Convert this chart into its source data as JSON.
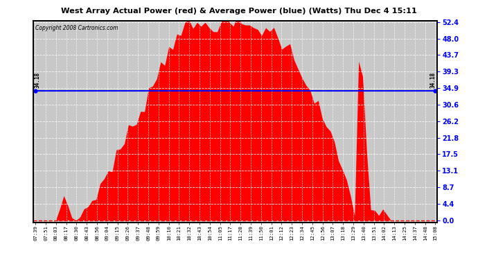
{
  "title": "West Array Actual Power (red) & Average Power (blue) (Watts) Thu Dec 4 15:11",
  "copyright": "Copyright 2008 Cartronics.com",
  "average_value": 34.18,
  "y_max": 52.4,
  "y_ticks": [
    0.0,
    4.4,
    8.7,
    13.1,
    17.5,
    21.8,
    26.2,
    30.6,
    34.9,
    39.3,
    43.7,
    48.0,
    52.4
  ],
  "bg_color": "#ffffff",
  "plot_bg_color": "#c8c8c8",
  "bar_color": "#ff0000",
  "avg_line_color": "#0000ff",
  "grid_color": "#ffffff",
  "x_labels": [
    "07:39",
    "07:51",
    "08:03",
    "08:17",
    "08:30",
    "08:43",
    "08:56",
    "09:04",
    "09:15",
    "09:26",
    "09:37",
    "09:48",
    "09:59",
    "10:10",
    "10:21",
    "10:32",
    "10:43",
    "10:54",
    "11:05",
    "11:17",
    "11:28",
    "11:39",
    "11:50",
    "12:01",
    "12:12",
    "12:23",
    "12:34",
    "12:45",
    "12:56",
    "13:07",
    "13:18",
    "13:29",
    "13:40",
    "13:51",
    "14:02",
    "14:13",
    "14:25",
    "14:37",
    "14:48",
    "15:08"
  ],
  "figsize": [
    6.9,
    3.75
  ],
  "dpi": 100
}
